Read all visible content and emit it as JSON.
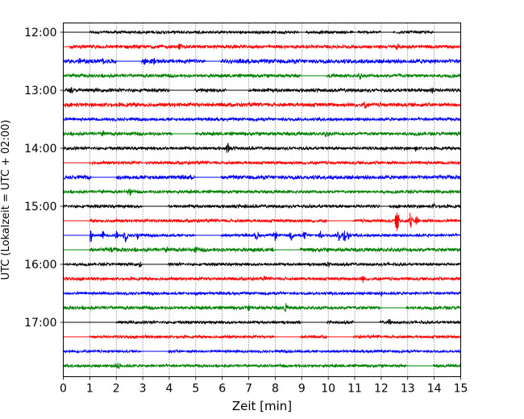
{
  "chart_data": {
    "type": "line",
    "title": "",
    "xlabel": "Zeit  [min]",
    "ylabel": "UTC (Lokalzeit = UTC + 02:00)",
    "xlim": [
      0,
      15
    ],
    "x_ticks": [
      "0",
      "1",
      "2",
      "3",
      "4",
      "5",
      "6",
      "7",
      "8",
      "9",
      "10",
      "11",
      "12",
      "13",
      "14",
      "15"
    ],
    "y_ticks": [
      {
        "label": "12:00",
        "row": 0
      },
      {
        "label": "13:00",
        "row": 4
      },
      {
        "label": "14:00",
        "row": 8
      },
      {
        "label": "15:00",
        "row": 12
      },
      {
        "label": "16:00",
        "row": 16
      },
      {
        "label": "17:00",
        "row": 20
      }
    ],
    "row_minutes": 15,
    "row_count": 24,
    "start_time": "12:00",
    "color_cycle": [
      "#000000",
      "#ff0000",
      "#0000ff",
      "#008000"
    ],
    "grid": {
      "x": "dotted",
      "y": false
    },
    "rows": [
      {
        "time": "12:00",
        "color": "#000000",
        "amp": 2.0,
        "start": 1.0,
        "flat": [
          [
            8.9,
            9.15
          ],
          [
            10.95,
            11.1
          ],
          [
            12.0,
            12.45
          ],
          [
            13.95,
            15.0
          ]
        ],
        "events": []
      },
      {
        "time": "12:15",
        "color": "#ff0000",
        "amp": 2.5,
        "start": 0.25,
        "flat": [],
        "events": [
          [
            4.4,
            6
          ],
          [
            12.6,
            5
          ]
        ]
      },
      {
        "time": "12:30",
        "color": "#0000ff",
        "amp": 3.0,
        "start": 0,
        "flat": [
          [
            2.0,
            2.95
          ],
          [
            5.35,
            5.95
          ]
        ],
        "events": [
          [
            0.6,
            5
          ],
          [
            1.5,
            5
          ],
          [
            3.1,
            7
          ],
          [
            3.4,
            6
          ],
          [
            5.5,
            4
          ],
          [
            8.0,
            3
          ]
        ]
      },
      {
        "time": "12:45",
        "color": "#008000",
        "amp": 2.5,
        "start": 0,
        "flat": [
          [
            8.95,
            9.95
          ]
        ],
        "events": [
          [
            11.2,
            6
          ],
          [
            12.7,
            4
          ]
        ]
      },
      {
        "time": "13:00",
        "color": "#000000",
        "amp": 2.5,
        "start": 0,
        "flat": [
          [
            4.0,
            4.95
          ],
          [
            6.15,
            7.0
          ]
        ],
        "events": [
          [
            0.3,
            5
          ],
          [
            13.9,
            6
          ]
        ]
      },
      {
        "time": "13:15",
        "color": "#ff0000",
        "amp": 2.8,
        "start": 0,
        "flat": [],
        "events": [
          [
            11.4,
            6
          ]
        ]
      },
      {
        "time": "13:30",
        "color": "#0000ff",
        "amp": 2.2,
        "start": 0,
        "flat": [],
        "events": []
      },
      {
        "time": "13:45",
        "color": "#008000",
        "amp": 2.5,
        "start": 0,
        "flat": [
          [
            4.1,
            4.95
          ]
        ],
        "events": [
          [
            1.5,
            6
          ],
          [
            9.9,
            5
          ],
          [
            10.0,
            4
          ]
        ]
      },
      {
        "time": "14:00",
        "color": "#000000",
        "amp": 2.2,
        "start": 0,
        "flat": [],
        "events": [
          [
            6.2,
            8
          ],
          [
            13.3,
            4
          ]
        ]
      },
      {
        "time": "14:15",
        "color": "#ff0000",
        "amp": 2.2,
        "start": 1.0,
        "flat": [
          [
            2.95,
            3.1
          ]
        ],
        "events": []
      },
      {
        "time": "14:30",
        "color": "#0000ff",
        "amp": 2.8,
        "start": 0,
        "flat": [
          [
            1.05,
            2.0
          ],
          [
            4.95,
            5.95
          ]
        ],
        "events": []
      },
      {
        "time": "14:45",
        "color": "#008000",
        "amp": 2.2,
        "start": 0,
        "flat": [],
        "events": [
          [
            2.5,
            7
          ],
          [
            1.5,
            4
          ]
        ]
      },
      {
        "time": "15:00",
        "color": "#000000",
        "amp": 2.2,
        "start": 0,
        "flat": [
          [
            2.95,
            3.95
          ],
          [
            11.95,
            12.3
          ]
        ],
        "events": [
          [
            6.9,
            4
          ],
          [
            14.0,
            4
          ]
        ]
      },
      {
        "time": "15:15",
        "color": "#ff0000",
        "amp": 2.2,
        "start": 1.0,
        "flat": [
          [
            9.95,
            10.95
          ]
        ],
        "events": [
          [
            12.6,
            14
          ],
          [
            13.1,
            12
          ],
          [
            13.35,
            8
          ]
        ]
      },
      {
        "time": "15:30",
        "color": "#0000ff",
        "amp": 2.0,
        "start": 1.0,
        "flat": [
          [
            4.95,
            5.95
          ]
        ],
        "events": [
          [
            1.0,
            16
          ],
          [
            1.5,
            6
          ],
          [
            2.0,
            6
          ],
          [
            2.35,
            10
          ],
          [
            2.8,
            6
          ],
          [
            7.3,
            8
          ],
          [
            8.0,
            7
          ],
          [
            8.6,
            8
          ],
          [
            9.1,
            6
          ],
          [
            9.7,
            6
          ],
          [
            10.4,
            9
          ],
          [
            10.6,
            11
          ],
          [
            10.75,
            8
          ]
        ]
      },
      {
        "time": "15:45",
        "color": "#008000",
        "amp": 2.8,
        "start": 1.0,
        "flat": [
          [
            7.95,
            8.95
          ]
        ],
        "events": [
          [
            3.9,
            6
          ],
          [
            5.0,
            5
          ],
          [
            1.8,
            5
          ]
        ]
      },
      {
        "time": "16:00",
        "color": "#000000",
        "amp": 2.0,
        "start": 0,
        "flat": [
          [
            2.95,
            3.95
          ]
        ],
        "events": [
          [
            2.9,
            6
          ],
          [
            10.0,
            4
          ]
        ]
      },
      {
        "time": "16:15",
        "color": "#ff0000",
        "amp": 2.2,
        "start": 0,
        "flat": [],
        "events": [
          [
            11.3,
            6
          ],
          [
            7.6,
            4
          ]
        ]
      },
      {
        "time": "16:30",
        "color": "#0000ff",
        "amp": 2.0,
        "start": 0,
        "flat": [],
        "events": [
          [
            5.0,
            4
          ],
          [
            12.0,
            4
          ]
        ]
      },
      {
        "time": "16:45",
        "color": "#008000",
        "amp": 2.5,
        "start": 0,
        "flat": [
          [
            11.95,
            12.95
          ]
        ],
        "events": [
          [
            8.4,
            6
          ],
          [
            7.0,
            4
          ]
        ]
      },
      {
        "time": "17:00",
        "color": "#000000",
        "amp": 2.0,
        "start": 1.0,
        "flat": [
          [
            1.0,
            2.0
          ],
          [
            8.95,
            9.95
          ],
          [
            10.95,
            11.95
          ]
        ],
        "events": [
          [
            12.3,
            5
          ]
        ]
      },
      {
        "time": "17:15",
        "color": "#ff0000",
        "amp": 2.0,
        "start": 1.0,
        "flat": [
          [
            7.95,
            8.95
          ],
          [
            9.95,
            10.95
          ]
        ],
        "events": []
      },
      {
        "time": "17:30",
        "color": "#0000ff",
        "amp": 1.8,
        "start": 0,
        "flat": [
          [
            2.95,
            3.95
          ]
        ],
        "events": []
      },
      {
        "time": "17:45",
        "color": "#008000",
        "amp": 2.0,
        "start": 0,
        "flat": [
          [
            12.95,
            13.95
          ]
        ],
        "events": [
          [
            2.1,
            6
          ],
          [
            2.0,
            4
          ]
        ]
      }
    ]
  }
}
